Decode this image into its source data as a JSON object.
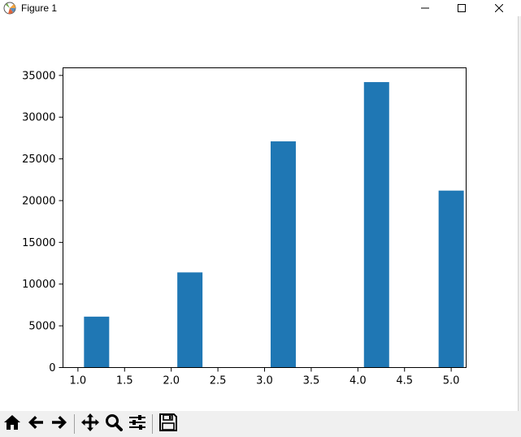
{
  "window": {
    "title": "Figure 1",
    "app_icon": "matplotlib-logo-icon",
    "controls": {
      "minimize_icon": "minimize-icon",
      "maximize_icon": "maximize-icon",
      "close_icon": "close-icon"
    }
  },
  "toolbar": {
    "buttons": [
      {
        "name": "home-button",
        "icon": "home-icon"
      },
      {
        "name": "back-button",
        "icon": "arrow-left-icon"
      },
      {
        "name": "forward-button",
        "icon": "arrow-right-icon"
      },
      {
        "name": "pan-button",
        "icon": "move-icon"
      },
      {
        "name": "zoom-button",
        "icon": "magnifier-icon"
      },
      {
        "name": "configure-subplots-button",
        "icon": "sliders-icon"
      },
      {
        "name": "save-button",
        "icon": "floppy-disk-icon"
      }
    ]
  },
  "chart_data": {
    "type": "bar",
    "x": [
      1.2,
      2.2,
      3.2,
      4.2,
      5.0
    ],
    "values": [
      6100,
      11400,
      27100,
      34200,
      21200
    ],
    "bar_width": 0.27,
    "bar_color": "#1f77b4",
    "title": "",
    "xlabel": "",
    "ylabel": "",
    "xlim": [
      0.84,
      5.16
    ],
    "ylim": [
      0,
      35910
    ],
    "xticks": [
      1.0,
      1.5,
      2.0,
      2.5,
      3.0,
      3.5,
      4.0,
      4.5,
      5.0
    ],
    "xtick_labels": [
      "1.0",
      "1.5",
      "2.0",
      "2.5",
      "3.0",
      "3.5",
      "4.0",
      "4.5",
      "5.0"
    ],
    "yticks": [
      0,
      5000,
      10000,
      15000,
      20000,
      25000,
      30000,
      35000
    ],
    "ytick_labels": [
      "0",
      "5000",
      "10000",
      "15000",
      "20000",
      "25000",
      "30000",
      "35000"
    ],
    "grid": false,
    "legend": "none"
  }
}
